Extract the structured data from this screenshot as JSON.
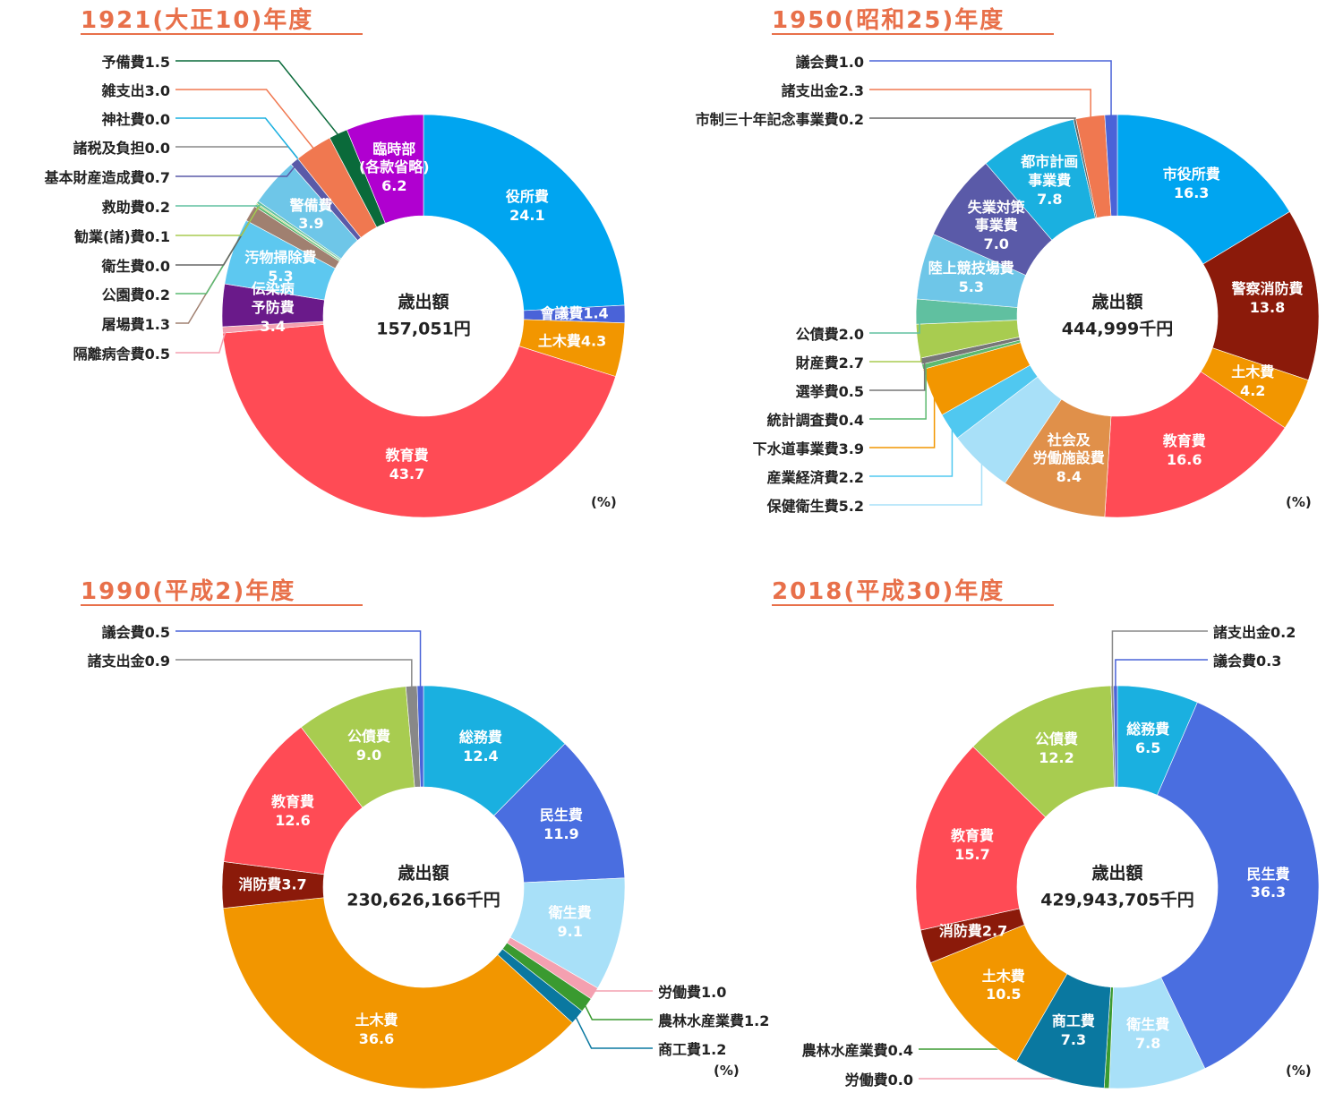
{
  "chart_data": [
    {
      "type": "pie",
      "title": "1921(大正10)年度",
      "center_label": "歳出額",
      "total": "157,051円",
      "unit_label": "(%)",
      "categories": [
        "役所費",
        "會議費",
        "土木費",
        "教育費",
        "隔離病舎費",
        "伝染病\n予防費",
        "汚物掃除費",
        "屠場費",
        "公園費",
        "衛生費",
        "勧業(諸)費",
        "救助費",
        "警備費",
        "基本財産造成費",
        "諸税及負担",
        "神社費",
        "雑支出",
        "予備費",
        "臨時部\n(各款省略)"
      ],
      "values": [
        24.1,
        1.4,
        4.3,
        43.7,
        0.5,
        3.4,
        5.3,
        1.3,
        0.2,
        0.0,
        0.1,
        0.2,
        3.9,
        0.7,
        0.0,
        0.0,
        3.0,
        1.5,
        6.2
      ],
      "value_labels": [
        "24.1",
        "1.4",
        "4.3",
        "43.7",
        "0.5",
        "3.4",
        "5.3",
        "1.3",
        "0.2",
        "0.0",
        "0.1",
        "0.2",
        "3.9",
        "0.7",
        "0.0",
        "0.0",
        "3.0",
        "1.5",
        "6.2"
      ],
      "colors": [
        "#00a5f0",
        "#4a63d8",
        "#f29600",
        "#ff4b55",
        "#f4a0b0",
        "#6a1a8a",
        "#5dc8f0",
        "#a08070",
        "#5cba70",
        "#666666",
        "#a8cc50",
        "#60c0a0",
        "#6ec6e8",
        "#5a5aa8",
        "#888888",
        "#1ab0e0",
        "#f07850",
        "#0a6a3a",
        "#b000d0"
      ]
    },
    {
      "type": "pie",
      "title": "1950(昭和25)年度",
      "center_label": "歳出額",
      "total": "444,999千円",
      "unit_label": "(%)",
      "categories": [
        "市役所費",
        "警察消防費",
        "土木費",
        "教育費",
        "社会及\n労働施設費",
        "保健衛生費",
        "産業経済費",
        "下水道事業費",
        "統計調査費",
        "選挙費",
        "財産費",
        "公債費",
        "陸上競技場費",
        "失業対策\n事業費",
        "都市計画\n事業費",
        "市制三十年記念事業費",
        "諸支出金",
        "議会費"
      ],
      "values": [
        16.3,
        13.8,
        4.2,
        16.6,
        8.4,
        5.2,
        2.2,
        3.9,
        0.4,
        0.5,
        2.7,
        2.0,
        5.3,
        7.0,
        7.8,
        0.2,
        2.3,
        1.0
      ],
      "value_labels": [
        "16.3",
        "13.8",
        "4.2",
        "16.6",
        "8.4",
        "5.2",
        "2.2",
        "3.9",
        "0.4",
        "0.5",
        "2.7",
        "2.0",
        "5.3",
        "7.0",
        "7.8",
        "0.2",
        "2.3",
        "1.0"
      ],
      "colors": [
        "#00a5f0",
        "#8b1a0a",
        "#f29600",
        "#ff4b55",
        "#e0904a",
        "#a8e0f8",
        "#50c8f0",
        "#f29600",
        "#5cba70",
        "#777777",
        "#a8cc50",
        "#60c0a0",
        "#6ec6e8",
        "#5a5aa8",
        "#1ab0e0",
        "#666666",
        "#f07850",
        "#4a63d8"
      ]
    },
    {
      "type": "pie",
      "title": "1990(平成2)年度",
      "center_label": "歳出額",
      "total": "230,626,166千円",
      "unit_label": "(%)",
      "categories": [
        "総務費",
        "民生費",
        "衛生費",
        "労働費",
        "農林水産業費",
        "商工費",
        "土木費",
        "消防費",
        "教育費",
        "公債費",
        "諸支出金",
        "議会費"
      ],
      "values": [
        12.4,
        11.9,
        9.1,
        1.0,
        1.2,
        1.2,
        36.6,
        3.7,
        12.6,
        9.0,
        0.9,
        0.5
      ],
      "value_labels": [
        "12.4",
        "11.9",
        "9.1",
        "1.0",
        "1.2",
        "1.2",
        "36.6",
        "3.7",
        "12.6",
        "9.0",
        "0.9",
        "0.5"
      ],
      "colors": [
        "#1ab0e0",
        "#4a6ee0",
        "#a8e0f8",
        "#f4a0b0",
        "#3a9a30",
        "#0a78a0",
        "#f29600",
        "#8b1a0a",
        "#ff4b55",
        "#a8cc50",
        "#888888",
        "#4a63d8"
      ]
    },
    {
      "type": "pie",
      "title": "2018(平成30)年度",
      "center_label": "歳出額",
      "total": "429,943,705千円",
      "unit_label": "(%)",
      "categories": [
        "総務費",
        "民生費",
        "衛生費",
        "労働費",
        "農林水産業費",
        "商工費",
        "土木費",
        "消防費",
        "教育費",
        "公債費",
        "諸支出金",
        "議会費"
      ],
      "values": [
        6.5,
        36.3,
        7.8,
        0.0,
        0.4,
        7.3,
        10.5,
        2.7,
        15.7,
        12.2,
        0.2,
        0.3
      ],
      "value_labels": [
        "6.5",
        "36.3",
        "7.8",
        "0.0",
        "0.4",
        "7.3",
        "10.5",
        "2.7",
        "15.7",
        "12.2",
        "0.2",
        "0.3"
      ],
      "colors": [
        "#1ab0e0",
        "#4a6ee0",
        "#a8e0f8",
        "#f4a0b0",
        "#3a9a30",
        "#0a78a0",
        "#f29600",
        "#8b1a0a",
        "#ff4b55",
        "#a8cc50",
        "#888888",
        "#4a63d8"
      ]
    }
  ]
}
